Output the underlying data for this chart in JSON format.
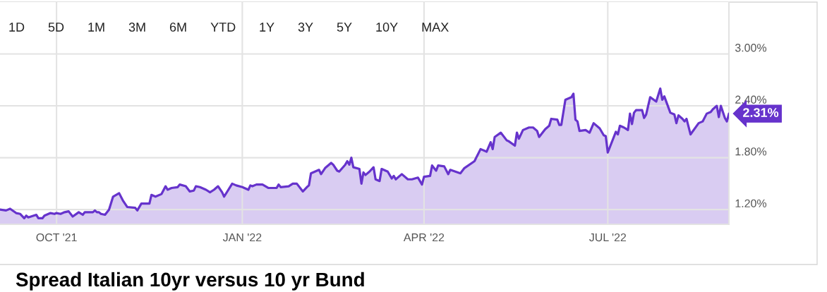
{
  "chart_data": {
    "type": "area",
    "title": "Spread Italian 10yr versus 10 yr Bund",
    "annotations": [
      "1D",
      "5D",
      "1M",
      "3M",
      "6M",
      "YTD",
      "1Y",
      "3Y",
      "5Y",
      "10Y",
      "MAX",
      {
        "text": "2.31%",
        "x": "2022-08-30",
        "y": 2.31
      }
    ],
    "x": [
      "2021-09-03",
      "2021-09-06",
      "2021-09-08",
      "2021-09-11",
      "2021-09-13",
      "2021-09-15",
      "2021-09-16",
      "2021-09-17",
      "2021-09-21",
      "2021-09-22",
      "2021-09-24",
      "2021-09-25",
      "2021-09-28",
      "2021-09-30",
      "2021-10-01",
      "2021-10-03",
      "2021-10-05",
      "2021-10-07",
      "2021-10-09",
      "2021-10-12",
      "2021-10-14",
      "2021-10-15",
      "2021-10-19",
      "2021-10-20",
      "2021-10-21",
      "2021-10-22",
      "2021-10-23",
      "2021-10-25",
      "2021-10-27",
      "2021-10-29",
      "2021-11-01",
      "2021-11-03",
      "2021-11-05",
      "2021-11-09",
      "2021-11-10",
      "2021-11-12",
      "2021-11-16",
      "2021-11-17",
      "2021-11-19",
      "2021-11-22",
      "2021-11-24",
      "2021-11-25",
      "2021-11-27",
      "2021-11-30",
      "2021-12-01",
      "2021-12-04",
      "2021-12-06",
      "2021-12-08",
      "2021-12-09",
      "2021-12-11",
      "2021-12-14",
      "2021-12-16",
      "2021-12-18",
      "2021-12-20",
      "2021-12-22",
      "2021-12-23",
      "2021-12-27",
      "2021-12-29",
      "2022-01-01",
      "2022-01-04",
      "2022-01-05",
      "2022-01-06",
      "2022-01-08",
      "2022-01-11",
      "2022-01-14",
      "2022-01-18",
      "2022-01-19",
      "2022-01-20",
      "2022-01-24",
      "2022-01-26",
      "2022-01-28",
      "2022-01-31",
      "2022-02-02",
      "2022-02-03",
      "2022-02-04",
      "2022-02-07",
      "2022-02-08",
      "2022-02-09",
      "2022-02-11",
      "2022-02-14",
      "2022-02-15",
      "2022-02-17",
      "2022-02-18",
      "2022-02-21",
      "2022-02-22",
      "2022-02-23",
      "2022-02-24",
      "2022-02-25",
      "2022-02-28",
      "2022-03-01",
      "2022-03-02",
      "2022-03-03",
      "2022-03-05",
      "2022-03-07",
      "2022-03-08",
      "2022-03-10",
      "2022-03-11",
      "2022-03-14",
      "2022-03-16",
      "2022-03-17",
      "2022-03-18",
      "2022-03-21",
      "2022-03-24",
      "2022-03-26",
      "2022-03-29",
      "2022-03-31",
      "2022-04-01",
      "2022-04-04",
      "2022-04-05",
      "2022-04-07",
      "2022-04-08",
      "2022-04-11",
      "2022-04-13",
      "2022-04-14",
      "2022-04-19",
      "2022-04-21",
      "2022-04-26",
      "2022-04-29",
      "2022-05-02",
      "2022-05-04",
      "2022-05-05",
      "2022-05-06",
      "2022-05-09",
      "2022-05-12",
      "2022-05-13",
      "2022-05-16",
      "2022-05-17",
      "2022-05-18",
      "2022-05-20",
      "2022-05-23",
      "2022-05-25",
      "2022-05-27",
      "2022-05-28",
      "2022-05-31",
      "2022-06-02",
      "2022-06-03",
      "2022-06-06",
      "2022-06-07",
      "2022-06-08",
      "2022-06-10",
      "2022-06-13",
      "2022-06-14",
      "2022-06-15",
      "2022-06-16",
      "2022-06-17",
      "2022-06-20",
      "2022-06-22",
      "2022-06-24",
      "2022-06-27",
      "2022-06-29",
      "2022-06-30",
      "2022-07-01",
      "2022-07-05",
      "2022-07-06",
      "2022-07-07",
      "2022-07-09",
      "2022-07-11",
      "2022-07-12",
      "2022-07-13",
      "2022-07-14",
      "2022-07-15",
      "2022-07-18",
      "2022-07-19",
      "2022-07-20",
      "2022-07-22",
      "2022-07-25",
      "2022-07-27",
      "2022-07-28",
      "2022-07-29",
      "2022-08-01",
      "2022-08-03",
      "2022-08-04",
      "2022-08-05",
      "2022-08-07",
      "2022-08-08",
      "2022-08-09",
      "2022-08-11",
      "2022-08-15",
      "2022-08-17",
      "2022-08-19",
      "2022-08-21",
      "2022-08-22",
      "2022-08-24",
      "2022-08-25",
      "2022-08-26",
      "2022-08-28",
      "2022-08-29",
      "2022-08-30"
    ],
    "series": [
      {
        "color": "#6633cc",
        "values": [
          1.2,
          1.19,
          1.21,
          1.16,
          1.15,
          1.1,
          1.13,
          1.11,
          1.14,
          1.1,
          1.1,
          1.13,
          1.16,
          1.15,
          1.16,
          1.15,
          1.17,
          1.18,
          1.12,
          1.17,
          1.14,
          1.17,
          1.17,
          1.19,
          1.17,
          1.17,
          1.15,
          1.14,
          1.2,
          1.35,
          1.39,
          1.3,
          1.23,
          1.22,
          1.19,
          1.27,
          1.27,
          1.37,
          1.35,
          1.38,
          1.47,
          1.43,
          1.45,
          1.46,
          1.49,
          1.47,
          1.41,
          1.42,
          1.47,
          1.46,
          1.43,
          1.4,
          1.43,
          1.47,
          1.4,
          1.35,
          1.5,
          1.48,
          1.46,
          1.43,
          1.48,
          1.47,
          1.49,
          1.49,
          1.45,
          1.45,
          1.49,
          1.46,
          1.47,
          1.5,
          1.5,
          1.41,
          1.46,
          1.48,
          1.62,
          1.65,
          1.66,
          1.61,
          1.68,
          1.74,
          1.72,
          1.65,
          1.64,
          1.72,
          1.76,
          1.72,
          1.8,
          1.69,
          1.67,
          1.5,
          1.63,
          1.6,
          1.64,
          1.69,
          1.55,
          1.53,
          1.67,
          1.64,
          1.56,
          1.59,
          1.55,
          1.61,
          1.55,
          1.55,
          1.57,
          1.49,
          1.58,
          1.59,
          1.71,
          1.65,
          1.71,
          1.7,
          1.61,
          1.66,
          1.62,
          1.68,
          1.76,
          1.9,
          1.87,
          1.98,
          1.9,
          2.04,
          2.09,
          2.0,
          1.99,
          1.94,
          2.09,
          2.02,
          2.12,
          2.15,
          2.15,
          2.11,
          2.04,
          2.13,
          2.17,
          2.25,
          2.24,
          2.18,
          2.18,
          2.47,
          2.5,
          2.54,
          2.24,
          2.22,
          2.11,
          2.12,
          2.09,
          2.2,
          2.14,
          2.06,
          2.05,
          1.86,
          2.1,
          2.07,
          2.17,
          2.15,
          2.12,
          2.31,
          2.19,
          2.32,
          2.35,
          2.35,
          2.26,
          2.3,
          2.5,
          2.45,
          2.6,
          2.47,
          2.51,
          2.32,
          2.3,
          2.2,
          2.29,
          2.25,
          2.22,
          2.25,
          2.07,
          2.2,
          2.22,
          2.31,
          2.33,
          2.36,
          2.4,
          2.27,
          2.4,
          2.26,
          2.22,
          2.31
        ]
      }
    ],
    "xlim": [
      "2021-09-03",
      "2022-08-30"
    ],
    "ylim": [
      1.03,
      3.6
    ],
    "xticks": [
      {
        "value": "2021-10-01",
        "label": "OCT '21"
      },
      {
        "value": "2022-01-01",
        "label": "JAN '22"
      },
      {
        "value": "2022-04-01",
        "label": "APR '22"
      },
      {
        "value": "2022-07-01",
        "label": "JUL '22"
      }
    ],
    "yticks": [
      {
        "value": 1.2,
        "label": "1.20%"
      },
      {
        "value": 1.8,
        "label": "1.80%"
      },
      {
        "value": 2.4,
        "label": "2.40%"
      },
      {
        "value": 3.0,
        "label": "3.00%"
      }
    ],
    "grid": true
  }
}
